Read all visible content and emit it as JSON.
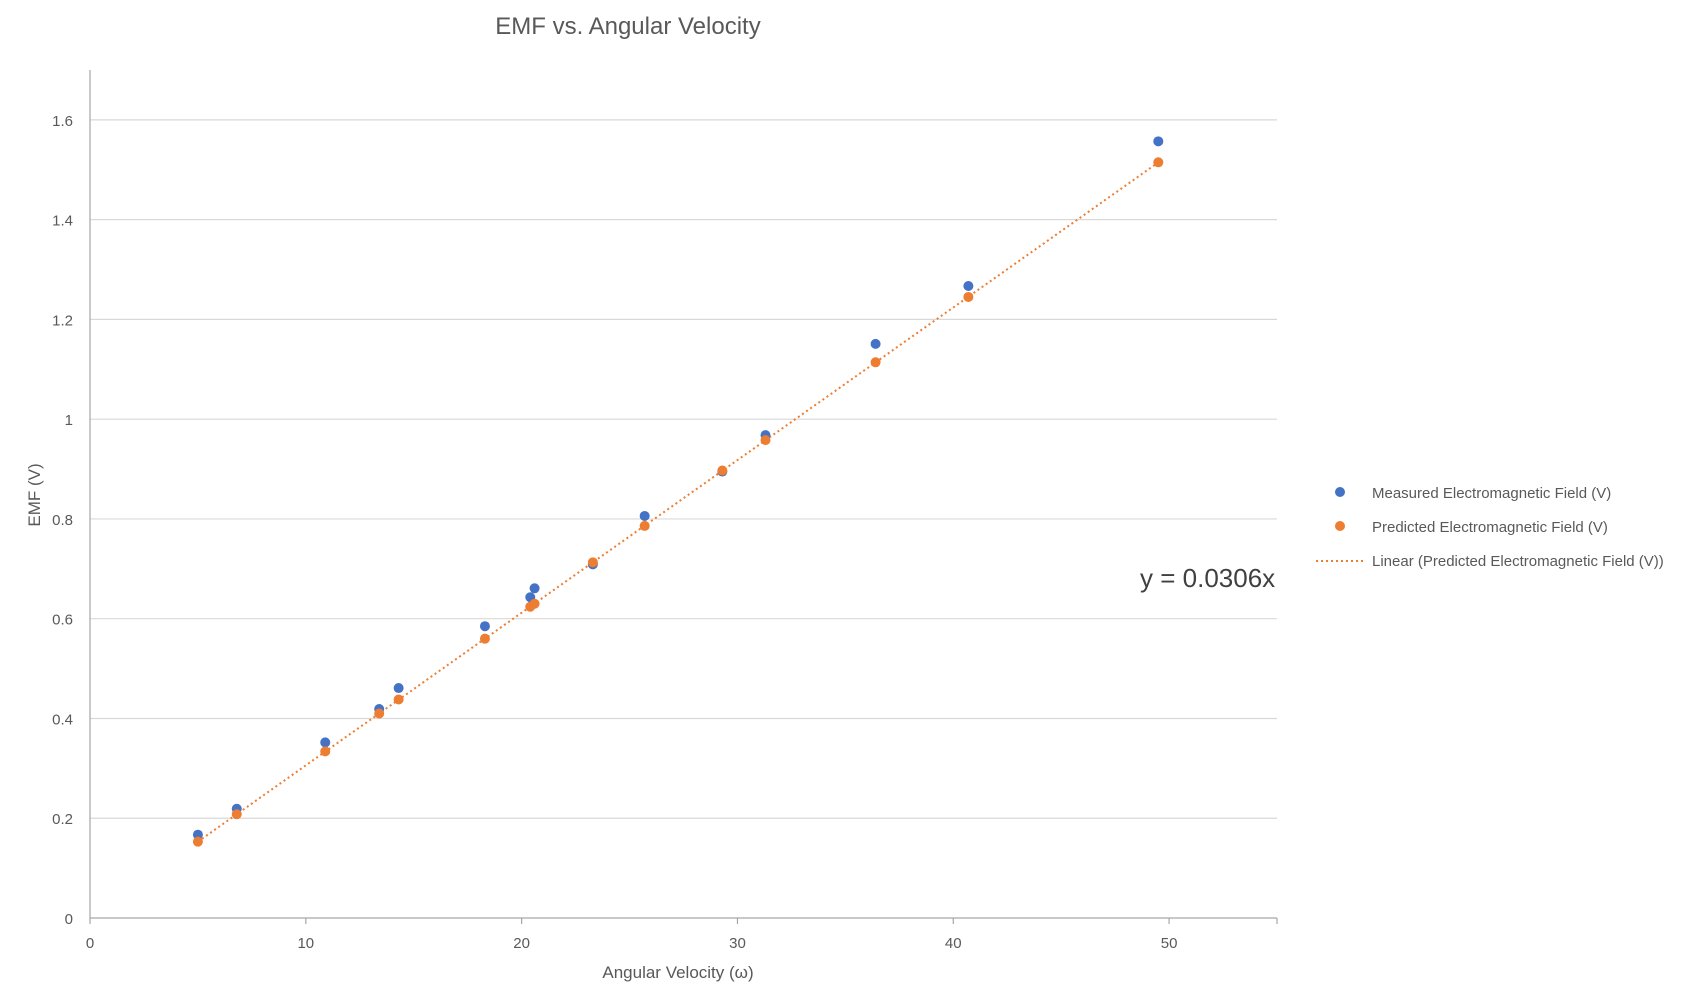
{
  "chart_data": {
    "type": "scatter",
    "title": "EMF  vs. Angular Velocity",
    "xlabel": "Angular Velocity (ω)",
    "ylabel": "EMF (V)",
    "xlim": [
      0,
      55
    ],
    "ylim": [
      0,
      1.7
    ],
    "x_ticks": [
      0,
      10,
      20,
      30,
      40,
      50
    ],
    "x_tick_labels": [
      "0",
      "10",
      "20",
      "30",
      "40",
      "50"
    ],
    "y_ticks": [
      0,
      0.2,
      0.4,
      0.6,
      0.8,
      1.0,
      1.2,
      1.4,
      1.6
    ],
    "y_tick_labels": [
      "0",
      "0.2",
      "0.4",
      "0.6",
      "0.8",
      "1",
      "1.2",
      "1.4",
      "1.6"
    ],
    "grid": "horizontal",
    "legend_position": "right",
    "x": [
      5.0,
      6.8,
      10.9,
      13.4,
      14.3,
      18.3,
      20.4,
      20.6,
      23.3,
      25.7,
      29.3,
      31.3,
      36.4,
      40.7,
      49.5
    ],
    "series": [
      {
        "name": "Measured Electromagnetic Field (V)",
        "color": "#4472C4",
        "values": [
          0.167,
          0.219,
          0.352,
          0.419,
          0.461,
          0.585,
          0.643,
          0.661,
          0.709,
          0.806,
          0.895,
          0.968,
          1.151,
          1.267,
          1.557
        ]
      },
      {
        "name": "Predicted Electromagnetic Field (V)",
        "color": "#ED7D31",
        "values": [
          0.153,
          0.208,
          0.334,
          0.41,
          0.438,
          0.56,
          0.624,
          0.63,
          0.713,
          0.786,
          0.897,
          0.958,
          1.114,
          1.245,
          1.515
        ]
      }
    ],
    "trendline": {
      "name": "Linear (Predicted Electromagnetic Field (V))",
      "color": "#ED7D31",
      "slope": 0.0306,
      "x_range": [
        5.0,
        49.5
      ],
      "equation_label": "y = 0.0306x"
    }
  }
}
